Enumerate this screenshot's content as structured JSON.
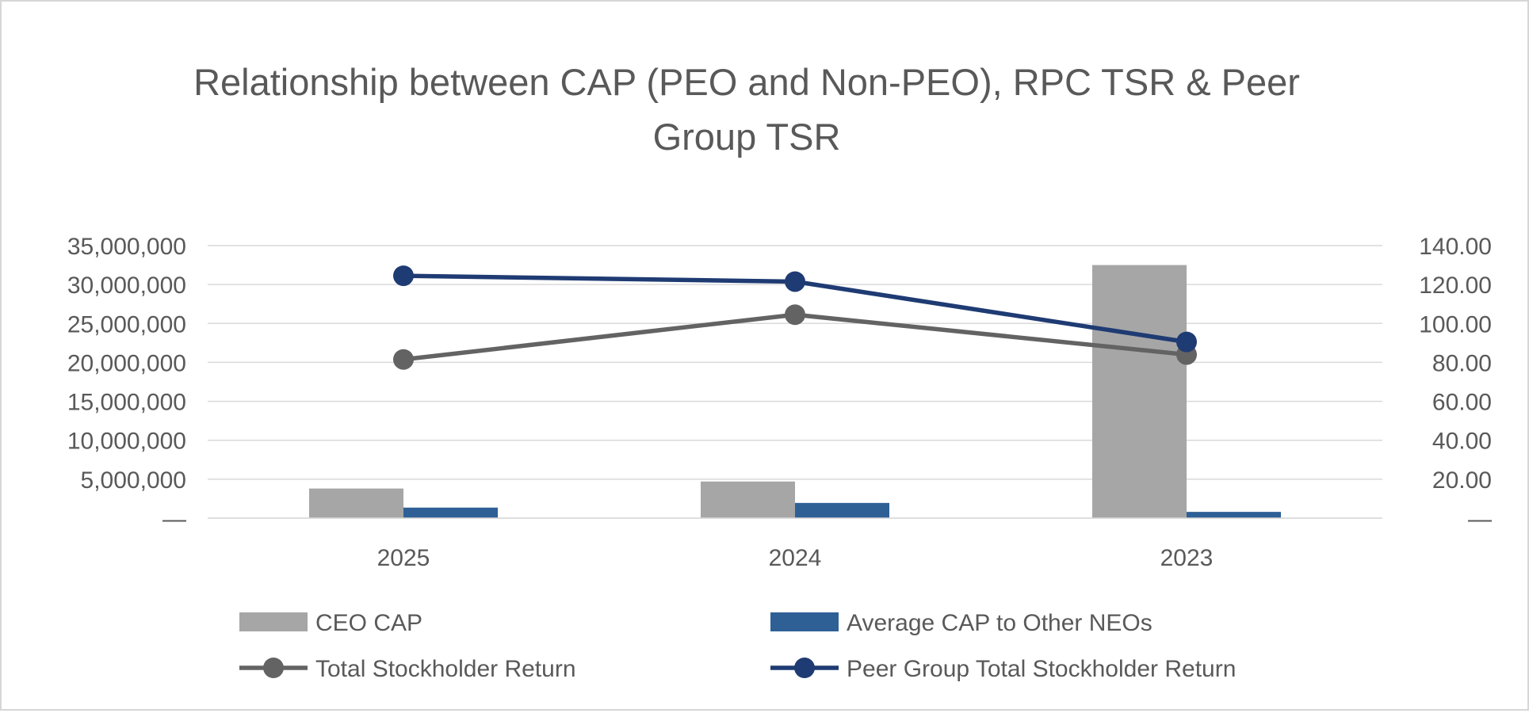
{
  "chart_data": {
    "type": "bar",
    "title_line1": "Relationship between CAP (PEO and Non-PEO), RPC TSR & Peer",
    "title_line2": "Group TSR",
    "categories": [
      "2025",
      "2024",
      "2023"
    ],
    "y_left": {
      "ylim": [
        0,
        35000000
      ],
      "ticks": [
        0,
        5000000,
        10000000,
        15000000,
        20000000,
        25000000,
        30000000,
        35000000
      ],
      "tick_labels": [
        "—",
        "5,000,000",
        "10,000,000",
        "15,000,000",
        "20,000,000",
        "25,000,000",
        "30,000,000",
        "35,000,000"
      ]
    },
    "y_right": {
      "ylim": [
        0,
        140
      ],
      "ticks": [
        0,
        20,
        40,
        60,
        80,
        100,
        120,
        140
      ],
      "tick_labels": [
        "—",
        "20.00",
        "40.00",
        "60.00",
        "80.00",
        "100.00",
        "120.00",
        "140.00"
      ]
    },
    "bar_series": [
      {
        "name": "CEO CAP",
        "color": "#a6a6a6",
        "axis": "left",
        "values": [
          3800000,
          4700000,
          32500000
        ]
      },
      {
        "name": "Average CAP to Other NEOs",
        "color": "#2e6096",
        "axis": "left",
        "values": [
          1350000,
          1950000,
          800000
        ]
      }
    ],
    "line_series": [
      {
        "name": "Total Stockholder Return",
        "color": "#636363",
        "axis": "right",
        "values": [
          81.5,
          104.5,
          84
        ]
      },
      {
        "name": "Peer Group Total Stockholder Return",
        "color": "#1f3b73",
        "axis": "right",
        "values": [
          124.5,
          121.5,
          90.5
        ]
      }
    ],
    "legend_position": "bottom",
    "grid": true
  }
}
